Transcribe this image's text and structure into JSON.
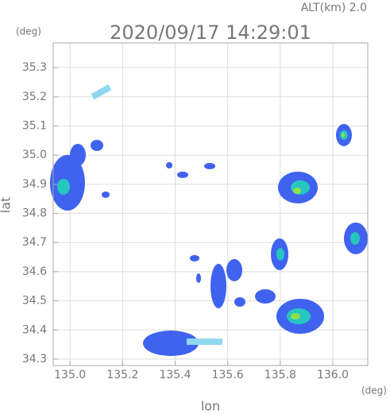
{
  "chart_data": {
    "type": "radar-map",
    "altitude_label": "ALT(km)  2.0",
    "title": "2020/09/17 14:29:01",
    "y_unit": "(deg)",
    "x_unit": "(deg)",
    "xlabel": "lon",
    "ylabel": "lat",
    "xlim": [
      134.936,
      136.133
    ],
    "ylim": [
      34.278,
      35.385
    ],
    "xticks": [
      {
        "value": 135.0,
        "label": "135.0"
      },
      135.2,
      135.4,
      135.6,
      135.8,
      {
        "value": 136.0,
        "label": "136.0"
      }
    ],
    "yticks": [
      34.3,
      34.4,
      34.5,
      34.6,
      34.7,
      34.8,
      34.9,
      {
        "value": 35.0,
        "label": "35.0"
      },
      35.1,
      35.2,
      35.3
    ],
    "grid": true
  }
}
